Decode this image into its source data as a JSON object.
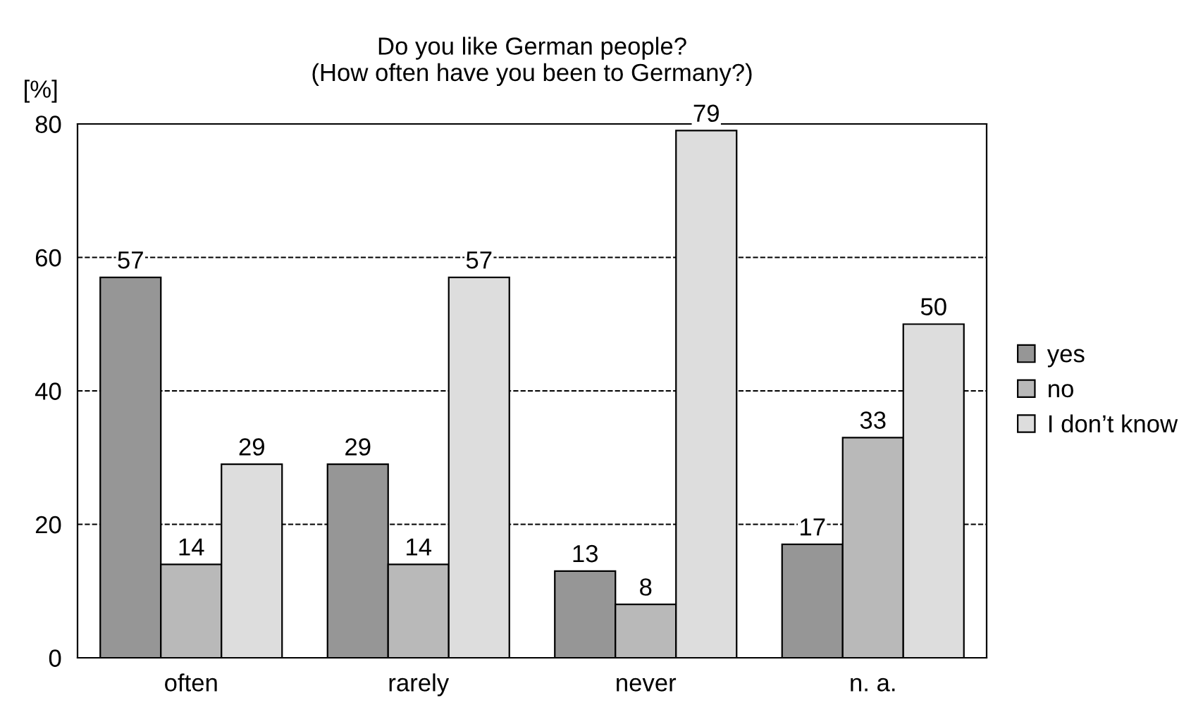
{
  "chart_data": {
    "type": "bar",
    "title": "Do you like German people?",
    "subtitle": "(How often have you been to Germany?)",
    "ylabel": "[%]",
    "categories": [
      "often",
      "rarely",
      "never",
      "n. a."
    ],
    "series": [
      {
        "name": "yes",
        "color": "#969696",
        "values": [
          57,
          29,
          13,
          17
        ]
      },
      {
        "name": "no",
        "color": "#b9b9b9",
        "values": [
          14,
          14,
          8,
          33
        ]
      },
      {
        "name": "I don’t know",
        "color": "#dddddd",
        "values": [
          29,
          57,
          79,
          50
        ]
      }
    ],
    "ylim": [
      0,
      80
    ],
    "yticks": [
      0,
      20,
      40,
      60,
      80
    ],
    "grid": "y",
    "legend": "right",
    "data_labels": true
  }
}
